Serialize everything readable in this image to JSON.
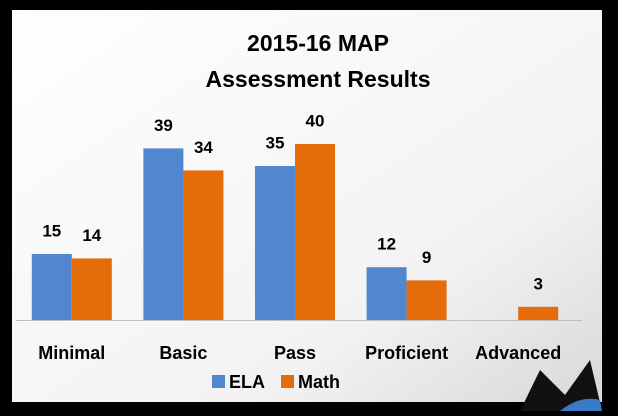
{
  "chart_data": {
    "type": "bar",
    "title": "2015-16 MAP",
    "subtitle": "Assessment Results",
    "categories": [
      "Minimal",
      "Basic",
      "Pass",
      "Proficient",
      "Advanced"
    ],
    "series": [
      {
        "name": "ELA",
        "color": "#5087cf",
        "values": [
          15,
          39,
          35,
          12,
          null
        ]
      },
      {
        "name": "Math",
        "color": "#e46c0a",
        "values": [
          14,
          34,
          40,
          9,
          3
        ]
      }
    ],
    "legend": "bottom"
  }
}
